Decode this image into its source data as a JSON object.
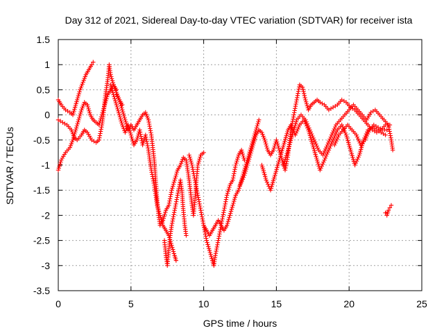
{
  "chart_data": {
    "type": "scatter",
    "title": "Day 312 of 2021, Sidereal Day-to-day VTEC variation (SDTVAR) for receiver ista",
    "xlabel": "GPS time / hours",
    "ylabel": "SDTVAR / TECUs",
    "xlim": [
      0,
      25
    ],
    "ylim": [
      -3.5,
      1.5
    ],
    "x_ticks": [
      "0",
      "5",
      "10",
      "15",
      "20",
      "25"
    ],
    "y_ticks": [
      "1.5",
      "1",
      "0.5",
      "0",
      "-0.5",
      "-1",
      "-1.5",
      "-2",
      "-2.5",
      "-3",
      "-3.5"
    ],
    "x_tick_values": [
      0,
      5,
      10,
      15,
      20,
      25
    ],
    "y_tick_values": [
      1.5,
      1,
      0.5,
      0,
      -0.5,
      -1,
      -1.5,
      -2,
      -2.5,
      -3,
      -3.5
    ],
    "grid": true,
    "marker": "plus",
    "color": "#ff0000",
    "series": [
      {
        "name": "",
        "points": [
          [
            0.0,
            0.3
          ],
          [
            0.2,
            0.2
          ],
          [
            0.5,
            0.1
          ],
          [
            0.8,
            0.05
          ],
          [
            1.0,
            0.0
          ],
          [
            1.3,
            0.3
          ],
          [
            1.5,
            0.5
          ],
          [
            1.7,
            0.65
          ],
          [
            1.9,
            0.8
          ],
          [
            2.1,
            0.9
          ],
          [
            2.3,
            1.0
          ],
          [
            2.4,
            1.05
          ]
        ]
      },
      {
        "name": "",
        "points": [
          [
            0.0,
            -0.1
          ],
          [
            0.3,
            -0.15
          ],
          [
            0.6,
            -0.2
          ],
          [
            0.9,
            -0.3
          ],
          [
            1.1,
            -0.45
          ],
          [
            1.3,
            -0.5
          ],
          [
            1.6,
            -0.4
          ],
          [
            1.8,
            -0.3
          ],
          [
            2.0,
            -0.35
          ],
          [
            2.3,
            -0.5
          ],
          [
            2.6,
            -0.55
          ],
          [
            2.8,
            -0.5
          ],
          [
            3.0,
            -0.2
          ],
          [
            3.1,
            0.0
          ],
          [
            3.2,
            0.3
          ],
          [
            3.3,
            0.5
          ],
          [
            3.4,
            0.7
          ],
          [
            3.5,
            1.0
          ],
          [
            3.6,
            0.8
          ],
          [
            3.8,
            0.6
          ],
          [
            4.0,
            0.5
          ]
        ]
      },
      {
        "name": "",
        "points": [
          [
            0.0,
            -1.1
          ],
          [
            0.2,
            -0.9
          ],
          [
            0.5,
            -0.75
          ],
          [
            0.8,
            -0.65
          ],
          [
            1.0,
            -0.5
          ],
          [
            1.2,
            -0.3
          ],
          [
            1.4,
            -0.1
          ],
          [
            1.6,
            0.1
          ],
          [
            1.8,
            0.25
          ],
          [
            2.0,
            0.2
          ],
          [
            2.2,
            0.0
          ],
          [
            2.4,
            -0.1
          ],
          [
            2.6,
            -0.15
          ],
          [
            2.8,
            -0.2
          ],
          [
            3.0,
            0.0
          ],
          [
            3.2,
            0.2
          ],
          [
            3.4,
            0.4
          ],
          [
            3.6,
            0.5
          ],
          [
            3.8,
            0.6
          ],
          [
            4.0,
            0.45
          ],
          [
            4.2,
            0.3
          ],
          [
            4.4,
            0.2
          ]
        ]
      },
      {
        "name": "",
        "points": [
          [
            3.6,
            0.6
          ],
          [
            3.8,
            0.4
          ],
          [
            4.0,
            0.2
          ],
          [
            4.2,
            0.0
          ],
          [
            4.4,
            -0.2
          ],
          [
            4.6,
            -0.35
          ],
          [
            4.8,
            -0.2
          ],
          [
            5.0,
            -0.4
          ],
          [
            5.2,
            -0.6
          ],
          [
            5.4,
            -0.5
          ],
          [
            5.6,
            -0.3
          ],
          [
            5.8,
            -0.6
          ],
          [
            6.0,
            -0.4
          ],
          [
            6.2,
            -0.7
          ],
          [
            6.4,
            -1.1
          ],
          [
            6.6,
            -1.4
          ],
          [
            6.8,
            -1.8
          ],
          [
            7.0,
            -2.0
          ],
          [
            7.2,
            -2.2
          ],
          [
            7.4,
            -2.3
          ],
          [
            7.6,
            -2.4
          ],
          [
            7.8,
            -2.6
          ],
          [
            8.0,
            -2.8
          ],
          [
            8.1,
            -2.9
          ]
        ]
      },
      {
        "name": "",
        "points": [
          [
            4.0,
            0.4
          ],
          [
            4.2,
            0.3
          ],
          [
            4.4,
            0.1
          ],
          [
            4.6,
            -0.1
          ],
          [
            4.8,
            -0.3
          ],
          [
            5.0,
            -0.2
          ],
          [
            5.2,
            -0.3
          ],
          [
            5.4,
            -0.2
          ],
          [
            5.6,
            -0.1
          ],
          [
            5.8,
            0.0
          ],
          [
            6.0,
            0.05
          ],
          [
            6.2,
            -0.1
          ],
          [
            6.4,
            -0.4
          ],
          [
            6.6,
            -0.9
          ],
          [
            6.7,
            -1.3
          ],
          [
            6.8,
            -1.7
          ],
          [
            6.9,
            -2.0
          ],
          [
            7.0,
            -2.2
          ],
          [
            7.2,
            -2.1
          ],
          [
            7.4,
            -1.9
          ],
          [
            7.6,
            -1.8
          ],
          [
            7.8,
            -1.5
          ],
          [
            8.0,
            -1.3
          ],
          [
            8.2,
            -1.1
          ],
          [
            8.4,
            -1.0
          ],
          [
            8.6,
            -0.85
          ],
          [
            8.8,
            -0.9
          ],
          [
            9.0,
            -1.3
          ],
          [
            9.2,
            -1.8
          ],
          [
            9.3,
            -2.0
          ],
          [
            9.4,
            -1.7
          ],
          [
            9.5,
            -1.3
          ],
          [
            9.6,
            -1.0
          ],
          [
            9.8,
            -0.8
          ],
          [
            10.0,
            -0.75
          ]
        ]
      },
      {
        "name": "",
        "points": [
          [
            7.3,
            -2.5
          ],
          [
            7.4,
            -2.8
          ],
          [
            7.5,
            -3.0
          ],
          [
            7.6,
            -2.7
          ],
          [
            7.7,
            -2.4
          ],
          [
            7.8,
            -2.2
          ],
          [
            8.0,
            -1.9
          ],
          [
            8.2,
            -1.6
          ],
          [
            8.4,
            -1.3
          ],
          [
            8.5,
            -1.5
          ],
          [
            8.6,
            -1.9
          ],
          [
            8.7,
            -2.2
          ],
          [
            8.8,
            -2.4
          ]
        ]
      },
      {
        "name": "",
        "points": [
          [
            9.0,
            -0.8
          ],
          [
            9.2,
            -1.0
          ],
          [
            9.4,
            -1.3
          ],
          [
            9.6,
            -1.6
          ],
          [
            9.8,
            -1.9
          ],
          [
            10.0,
            -2.2
          ],
          [
            10.2,
            -2.5
          ],
          [
            10.4,
            -2.7
          ],
          [
            10.6,
            -2.9
          ],
          [
            10.7,
            -3.0
          ],
          [
            10.8,
            -2.8
          ],
          [
            11.0,
            -2.5
          ],
          [
            11.2,
            -2.2
          ],
          [
            11.4,
            -1.9
          ],
          [
            11.6,
            -1.6
          ],
          [
            11.8,
            -1.4
          ],
          [
            12.0,
            -1.3
          ],
          [
            12.2,
            -1.0
          ],
          [
            12.4,
            -0.8
          ],
          [
            12.6,
            -0.7
          ],
          [
            12.8,
            -0.9
          ]
        ]
      },
      {
        "name": "",
        "points": [
          [
            10.0,
            -2.2
          ],
          [
            10.2,
            -2.3
          ],
          [
            10.4,
            -2.4
          ],
          [
            10.6,
            -2.3
          ],
          [
            10.8,
            -2.2
          ],
          [
            11.0,
            -2.1
          ],
          [
            11.2,
            -2.2
          ],
          [
            11.4,
            -2.3
          ],
          [
            11.6,
            -2.2
          ],
          [
            11.8,
            -2.0
          ],
          [
            12.0,
            -1.8
          ],
          [
            12.2,
            -1.6
          ],
          [
            12.4,
            -1.5
          ],
          [
            12.6,
            -1.3
          ],
          [
            12.8,
            -1.1
          ],
          [
            13.0,
            -0.9
          ],
          [
            13.2,
            -0.7
          ],
          [
            13.4,
            -0.5
          ],
          [
            13.6,
            -0.3
          ],
          [
            13.8,
            -0.1
          ]
        ]
      },
      {
        "name": "",
        "points": [
          [
            12.5,
            -1.4
          ],
          [
            12.8,
            -1.2
          ],
          [
            13.0,
            -1.0
          ],
          [
            13.2,
            -0.8
          ],
          [
            13.4,
            -0.6
          ],
          [
            13.6,
            -0.4
          ],
          [
            13.8,
            -0.3
          ],
          [
            14.0,
            -0.35
          ],
          [
            14.2,
            -0.5
          ],
          [
            14.4,
            -0.7
          ],
          [
            14.6,
            -0.8
          ],
          [
            14.8,
            -0.7
          ],
          [
            15.0,
            -0.5
          ],
          [
            15.2,
            -0.7
          ],
          [
            15.4,
            -0.9
          ],
          [
            15.6,
            -1.1
          ],
          [
            15.8,
            -0.8
          ],
          [
            16.0,
            -0.3
          ],
          [
            16.2,
            0.0
          ],
          [
            16.4,
            0.3
          ],
          [
            16.6,
            0.6
          ],
          [
            16.8,
            0.55
          ],
          [
            17.0,
            0.3
          ],
          [
            17.2,
            0.1
          ],
          [
            17.4,
            0.2
          ],
          [
            17.6,
            0.25
          ],
          [
            17.8,
            0.3
          ],
          [
            18.0,
            0.25
          ],
          [
            18.3,
            0.2
          ],
          [
            18.6,
            0.1
          ],
          [
            18.9,
            0.15
          ],
          [
            19.2,
            0.2
          ],
          [
            19.5,
            0.3
          ],
          [
            19.8,
            0.25
          ],
          [
            20.1,
            0.15
          ],
          [
            20.4,
            0.1
          ],
          [
            20.7,
            0.0
          ],
          [
            21.0,
            -0.1
          ],
          [
            21.3,
            -0.2
          ],
          [
            21.6,
            -0.3
          ],
          [
            21.9,
            -0.35
          ],
          [
            22.2,
            -0.3
          ],
          [
            22.5,
            -0.2
          ],
          [
            22.8,
            -0.2
          ]
        ]
      },
      {
        "name": "",
        "points": [
          [
            14.0,
            -1.0
          ],
          [
            14.3,
            -1.3
          ],
          [
            14.6,
            -1.5
          ],
          [
            14.9,
            -1.2
          ],
          [
            15.2,
            -0.9
          ],
          [
            15.5,
            -0.6
          ],
          [
            15.8,
            -0.3
          ],
          [
            16.0,
            -0.2
          ],
          [
            16.3,
            -0.4
          ],
          [
            16.6,
            -0.2
          ],
          [
            16.9,
            -0.1
          ],
          [
            17.2,
            -0.3
          ],
          [
            17.5,
            -0.6
          ],
          [
            17.8,
            -0.9
          ],
          [
            18.0,
            -1.1
          ],
          [
            18.3,
            -0.9
          ],
          [
            18.6,
            -0.7
          ],
          [
            18.9,
            -0.5
          ],
          [
            19.2,
            -0.3
          ],
          [
            19.5,
            -0.2
          ],
          [
            19.8,
            -0.4
          ],
          [
            20.1,
            -0.7
          ],
          [
            20.4,
            -1.0
          ],
          [
            20.7,
            -0.8
          ],
          [
            21.0,
            -0.5
          ],
          [
            21.3,
            -0.3
          ],
          [
            21.6,
            -0.25
          ],
          [
            21.9,
            -0.3
          ],
          [
            22.2,
            -0.35
          ],
          [
            22.5,
            -0.4
          ]
        ]
      },
      {
        "name": "",
        "points": [
          [
            15.5,
            -1.0
          ],
          [
            15.8,
            -0.7
          ],
          [
            16.1,
            -0.4
          ],
          [
            16.4,
            -0.1
          ],
          [
            16.7,
            0.0
          ],
          [
            17.0,
            -0.1
          ],
          [
            17.3,
            -0.3
          ],
          [
            17.6,
            -0.5
          ],
          [
            17.9,
            -0.7
          ],
          [
            18.2,
            -0.8
          ],
          [
            18.5,
            -0.6
          ],
          [
            18.8,
            -0.4
          ],
          [
            19.1,
            -0.2
          ],
          [
            19.4,
            -0.1
          ],
          [
            19.7,
            0.0
          ],
          [
            20.0,
            0.1
          ],
          [
            20.3,
            0.2
          ],
          [
            20.6,
            0.1
          ],
          [
            20.9,
            0.0
          ],
          [
            21.2,
            -0.1
          ],
          [
            21.5,
            0.05
          ],
          [
            21.8,
            0.1
          ],
          [
            22.1,
            0.0
          ],
          [
            22.4,
            -0.1
          ],
          [
            22.7,
            -0.2
          ],
          [
            22.9,
            -0.5
          ],
          [
            23.0,
            -0.7
          ]
        ]
      },
      {
        "name": "",
        "points": [
          [
            19.0,
            -0.6
          ],
          [
            19.3,
            -0.4
          ],
          [
            19.6,
            -0.3
          ],
          [
            19.9,
            -0.2
          ],
          [
            20.2,
            -0.3
          ],
          [
            20.5,
            -0.4
          ],
          [
            20.8,
            -0.6
          ],
          [
            21.1,
            -0.5
          ],
          [
            21.4,
            -0.3
          ],
          [
            21.7,
            -0.2
          ],
          [
            22.0,
            -0.25
          ],
          [
            22.3,
            -0.3
          ],
          [
            22.6,
            -0.3
          ]
        ]
      },
      {
        "name": "",
        "points": [
          [
            22.5,
            -1.95
          ],
          [
            22.6,
            -2.0
          ],
          [
            22.7,
            -1.9
          ],
          [
            22.8,
            -1.85
          ],
          [
            22.9,
            -1.8
          ]
        ]
      }
    ]
  }
}
